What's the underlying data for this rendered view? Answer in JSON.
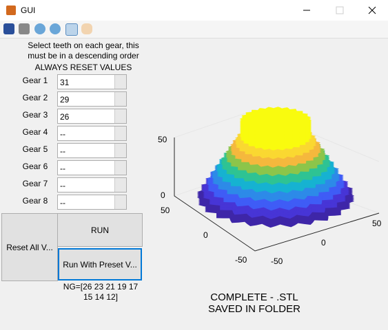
{
  "window": {
    "title": "GUI"
  },
  "instructions": {
    "text": "Select teeth on each gear, this must be in a descending order",
    "warning": "ALWAYS RESET VALUES"
  },
  "gears": [
    {
      "label": "Gear 1",
      "value": "31"
    },
    {
      "label": "Gear 2",
      "value": "29"
    },
    {
      "label": "Gear 3",
      "value": "26"
    },
    {
      "label": "Gear 4",
      "value": "--"
    },
    {
      "label": "Gear 5",
      "value": "--"
    },
    {
      "label": "Gear 6",
      "value": "--"
    },
    {
      "label": "Gear 7",
      "value": "--"
    },
    {
      "label": "Gear 8",
      "value": "--"
    }
  ],
  "buttons": {
    "reset": "Reset All V...",
    "run": "RUN",
    "preset": "Run With Preset V..."
  },
  "ng_text": "NG=[26 23 21 19 17 15 14 12]",
  "status": "COMPLETE - .STL SAVED IN FOLDER",
  "plot": {
    "z_ticks": [
      50,
      0
    ],
    "y_ticks": [
      50,
      0,
      -50
    ],
    "x_ticks": [
      0,
      50,
      -50
    ]
  }
}
